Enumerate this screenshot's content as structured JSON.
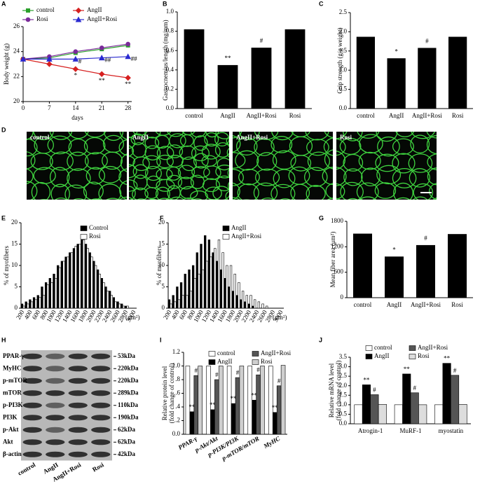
{
  "chart_data": [
    {
      "panel": "A",
      "type": "line",
      "ylabel": "Body weight (g)",
      "xlabel": "days",
      "x": [
        0,
        7,
        14,
        21,
        28
      ],
      "xlim": [
        0,
        29
      ],
      "xticks": [
        0,
        7,
        14,
        21,
        28
      ],
      "ylim": [
        20,
        26
      ],
      "yticks": [
        20,
        22,
        24,
        26
      ],
      "series": [
        {
          "name": "control",
          "color": "#2aa02a",
          "marker": "square",
          "values": [
            23.4,
            23.5,
            23.9,
            24.2,
            24.5
          ],
          "annotations": [
            null,
            null,
            null,
            null,
            null
          ]
        },
        {
          "name": "Rosi",
          "color": "#7b2a9a",
          "marker": "circle",
          "values": [
            23.4,
            23.6,
            24.0,
            24.3,
            24.6
          ],
          "annotations": [
            null,
            null,
            null,
            null,
            null
          ]
        },
        {
          "name": "AngII",
          "color": "#d62020",
          "marker": "diamond",
          "values": [
            23.4,
            23.0,
            22.6,
            22.2,
            21.9
          ],
          "annotations": [
            null,
            null,
            "*",
            "**",
            "**"
          ]
        },
        {
          "name": "AngII+Rosi",
          "color": "#2a2ad0",
          "marker": "triangle",
          "values": [
            23.4,
            23.4,
            23.4,
            23.5,
            23.6
          ],
          "annotations": [
            null,
            null,
            "#",
            "##",
            "##"
          ]
        }
      ]
    },
    {
      "panel": "B",
      "type": "bar",
      "ylabel": "Gastrocnemius/length (mg/mm)",
      "color": "#000000",
      "categories": [
        "control",
        "AngII",
        "AngII+Rosi",
        "Rosi"
      ],
      "values": [
        0.82,
        0.45,
        0.63,
        0.82
      ],
      "annotations": [
        null,
        "**",
        "#",
        null
      ],
      "ylim": [
        0,
        1
      ],
      "yticks": [
        {
          "value": 0,
          "label": "0.0"
        },
        0.2,
        0.4,
        0.6,
        0.8,
        {
          "value": 1,
          "label": "1.0"
        }
      ]
    },
    {
      "panel": "C",
      "type": "bar",
      "ylabel": "Grip strength (g/g weight)",
      "color": "#000000",
      "categories": [
        "control",
        "AngII",
        "AngII+Rosi",
        "Rosi"
      ],
      "values": [
        1.87,
        1.31,
        1.58,
        1.87
      ],
      "annotations": [
        null,
        "*",
        "#",
        null
      ],
      "ylim": [
        0,
        2.5
      ],
      "yticks": [
        {
          "value": 0,
          "label": "0.0"
        },
        0.5,
        {
          "value": 1,
          "label": "1.0"
        },
        1.5,
        {
          "value": 2,
          "label": "2.0"
        },
        2.5
      ]
    },
    {
      "panel": "D",
      "type": "micrograph",
      "labels": [
        "control",
        "AngII",
        "AngII+Rosi",
        "Rosi"
      ]
    },
    {
      "panel": "E",
      "type": "grouped",
      "ylabel": "% of myofibers",
      "unit": "(μm²)",
      "categories": [
        "200",
        null,
        "400",
        null,
        "600",
        null,
        "800",
        null,
        "1000",
        null,
        "1200",
        null,
        "1400",
        null,
        "1600",
        null,
        "1800",
        null,
        "2000",
        null,
        "2200",
        null,
        "2400",
        null,
        "2600",
        null,
        "2800",
        null,
        "3000"
      ],
      "ylim": [
        0,
        20
      ],
      "yticks": [
        0,
        5,
        10,
        15,
        20
      ],
      "series": [
        {
          "name": "Control",
          "color": "#000000",
          "values": [
            1,
            1.5,
            2,
            2.5,
            3,
            5,
            6,
            7,
            8,
            10,
            11,
            12,
            13,
            14,
            15,
            16,
            15,
            13,
            11,
            9,
            7,
            5,
            4,
            2.5,
            1.5,
            1,
            0.5,
            0,
            0
          ]
        },
        {
          "name": "Rosi",
          "color": "#ffffff",
          "values": [
            0.5,
            1,
            1.5,
            2,
            2.5,
            3,
            5.5,
            6,
            7,
            9.5,
            11,
            12,
            13,
            14.5,
            15,
            16,
            14,
            12,
            10,
            8,
            6,
            4,
            3,
            1.5,
            1,
            0.5,
            0.5,
            0,
            0
          ]
        }
      ]
    },
    {
      "panel": "F",
      "type": "grouped",
      "ylabel": "% of myofibers",
      "unit": "(μm²)",
      "categories": [
        "200",
        null,
        "400",
        null,
        "600",
        null,
        "800",
        null,
        "1000",
        null,
        "1200",
        null,
        "1400",
        null,
        "1600",
        null,
        "1800",
        null,
        "2000",
        null,
        "2200",
        null,
        "2400",
        null,
        "2600",
        null,
        "2800",
        null,
        "3000"
      ],
      "ylim": [
        0,
        20
      ],
      "yticks": [
        0,
        5,
        10,
        15,
        20
      ],
      "series": [
        {
          "name": "AngII",
          "color": "#000000",
          "values": [
            2,
            3,
            5,
            6,
            8,
            9,
            10,
            13,
            15,
            17,
            16,
            13,
            11,
            9,
            7,
            5,
            4,
            3,
            2,
            1.5,
            1,
            0.5,
            0,
            0,
            0,
            0,
            0,
            0,
            0
          ]
        },
        {
          "name": "AngII+Rosi",
          "color": "#ffffff",
          "values": [
            1,
            1.5,
            2,
            3,
            3,
            4,
            7,
            8,
            9,
            11,
            12,
            14,
            16,
            13,
            10,
            10,
            8,
            6,
            4,
            3,
            3,
            2,
            1.5,
            1,
            0.5,
            0,
            0,
            0,
            0
          ]
        }
      ]
    },
    {
      "panel": "G",
      "type": "bar",
      "ylabel": "Mean fiber area (μm²)",
      "color": "#000000",
      "categories": [
        "control",
        "AngII",
        "AngII+Rosi",
        "Rosi"
      ],
      "values": [
        1510,
        970,
        1240,
        1500
      ],
      "annotations": [
        null,
        "*",
        "#",
        null
      ],
      "ylim": [
        0,
        1800
      ],
      "yticks": [
        0,
        600,
        1200,
        1800
      ]
    },
    {
      "panel": "H",
      "type": "blot",
      "rows": [
        {
          "name": "PPAR-γ",
          "size": "53kDa"
        },
        {
          "name": "MyHC",
          "size": "220kDa"
        },
        {
          "name": "p-mTOR",
          "size": "220kDa"
        },
        {
          "name": "mTOR",
          "size": "289kDa"
        },
        {
          "name": "p-PI3K",
          "size": "110kDa"
        },
        {
          "name": "PI3K",
          "size": "190kDa"
        },
        {
          "name": "p-Akt",
          "size": "62kDa"
        },
        {
          "name": "Akt",
          "size": "62kDa"
        },
        {
          "name": "β-actin",
          "size": "42kDa"
        }
      ],
      "columns": [
        "control",
        "AngII",
        "AngII+Rosi",
        "Rosi"
      ]
    },
    {
      "panel": "I",
      "type": "grouped",
      "ylabel": "Relative protein level",
      "ylabel2": "(fold change of control)",
      "categories": [
        "PPAR-γ",
        "p-Akt/Akt",
        "p-PI3K/PI3K",
        "p-mTOR/mTOR",
        "MyHC"
      ],
      "ylim": [
        0,
        1.2
      ],
      "yticks": [
        {
          "value": 0,
          "label": "0.0"
        },
        {
          "value": 0.2,
          "label": ".2"
        },
        {
          "value": 0.4,
          "label": ".4"
        },
        {
          "value": 0.6,
          "label": ".6"
        },
        {
          "value": 0.8,
          "label": ".8"
        },
        {
          "value": 1,
          "label": "1.0"
        },
        {
          "value": 1.2,
          "label": "1.2"
        }
      ],
      "series": [
        {
          "name": "control",
          "color": "#ffffff",
          "values": [
            1,
            1,
            1,
            1,
            1
          ]
        },
        {
          "name": "AngII",
          "color": "#000000",
          "values": [
            0.33,
            0.36,
            0.45,
            0.5,
            0.32
          ],
          "annotations": [
            "**",
            "**",
            "**",
            "**",
            "**"
          ]
        },
        {
          "name": "AngII+Rosi",
          "color": "#555555",
          "values": [
            0.86,
            0.8,
            0.83,
            0.87,
            0.71
          ],
          "annotations": [
            "#",
            "#",
            "#",
            "#",
            "#"
          ]
        },
        {
          "name": "Rosi",
          "color": "#cfcfcf",
          "values": [
            1,
            1,
            1,
            1,
            1.01
          ]
        }
      ]
    },
    {
      "panel": "J",
      "type": "grouped",
      "ylabel": "Relative mRNA level",
      "ylabel2": "(fold change of control)",
      "categories": [
        "Atrogin-1",
        "MuRF-1",
        "myostatin"
      ],
      "ylim": [
        0,
        3.5
      ],
      "yticks": [
        {
          "value": 0,
          "label": "0.0"
        },
        0.5,
        {
          "value": 1,
          "label": "1.0"
        },
        1.5,
        {
          "value": 2,
          "label": "2.0"
        },
        2.5,
        {
          "value": 3,
          "label": "3.0"
        },
        3.5
      ],
      "series": [
        {
          "name": "control",
          "color": "#ffffff",
          "values": [
            1,
            1,
            1
          ]
        },
        {
          "name": "AngII",
          "color": "#000000",
          "values": [
            2.05,
            2.62,
            3.18
          ],
          "annotations": [
            "**",
            "**",
            "**"
          ]
        },
        {
          "name": "AngII+Rosi",
          "color": "#555555",
          "values": [
            1.53,
            1.63,
            2.55
          ],
          "annotations": [
            "#",
            "#",
            "#"
          ]
        },
        {
          "name": "Rosi",
          "color": "#dddddd",
          "values": [
            1.02,
            1,
            1.02
          ]
        }
      ]
    }
  ]
}
